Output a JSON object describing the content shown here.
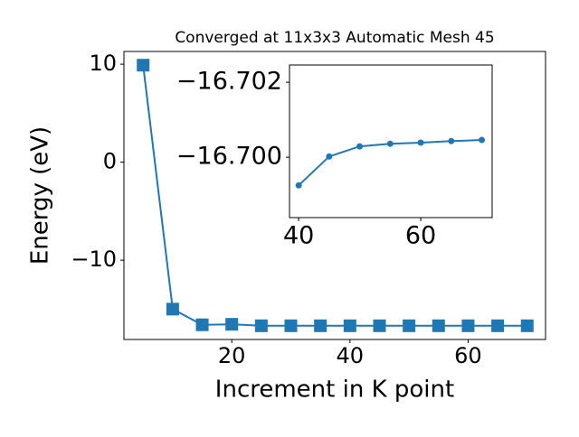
{
  "chart_data": [
    {
      "type": "line",
      "title": "Converged at 11x3x3 Automatic Mesh 45",
      "x_label": "Increment in K point",
      "y_label": "Energy (eV)",
      "x": [
        5,
        10,
        15,
        20,
        25,
        30,
        35,
        40,
        45,
        50,
        55,
        60,
        65,
        70
      ],
      "series": [
        {
          "color": "#1f77b4",
          "marker": "square",
          "values": [
            9.9,
            -15.0,
            -16.6,
            -16.55,
            -16.7,
            -16.7,
            -16.7,
            -16.7,
            -16.7,
            -16.7,
            -16.7,
            -16.7,
            -16.7,
            -16.7
          ]
        }
      ],
      "xlim": [
        1.75,
        73.1
      ],
      "ylim": [
        -18.1,
        11.3
      ],
      "xticks": [
        20,
        40,
        60
      ],
      "yticks": [
        {
          "value": -10,
          "label": "−10"
        },
        0,
        10
      ]
    },
    {
      "type": "line",
      "x": [
        40,
        45,
        50,
        55,
        60,
        65,
        70
      ],
      "series": [
        {
          "color": "#1f77b4",
          "marker": "circle",
          "values": [
            -16.69925,
            -16.70002,
            -16.70029,
            -16.70036,
            -16.70039,
            -16.70043,
            -16.70046
          ]
        }
      ],
      "xlim": [
        38.5,
        71.7
      ],
      "ylim": [
        -16.69839,
        -16.70246
      ],
      "xticks": [
        40,
        60
      ],
      "yticks": [
        {
          "value": -16.7,
          "label": "−16.700"
        },
        {
          "value": -16.702,
          "label": "−16.702"
        }
      ]
    }
  ]
}
